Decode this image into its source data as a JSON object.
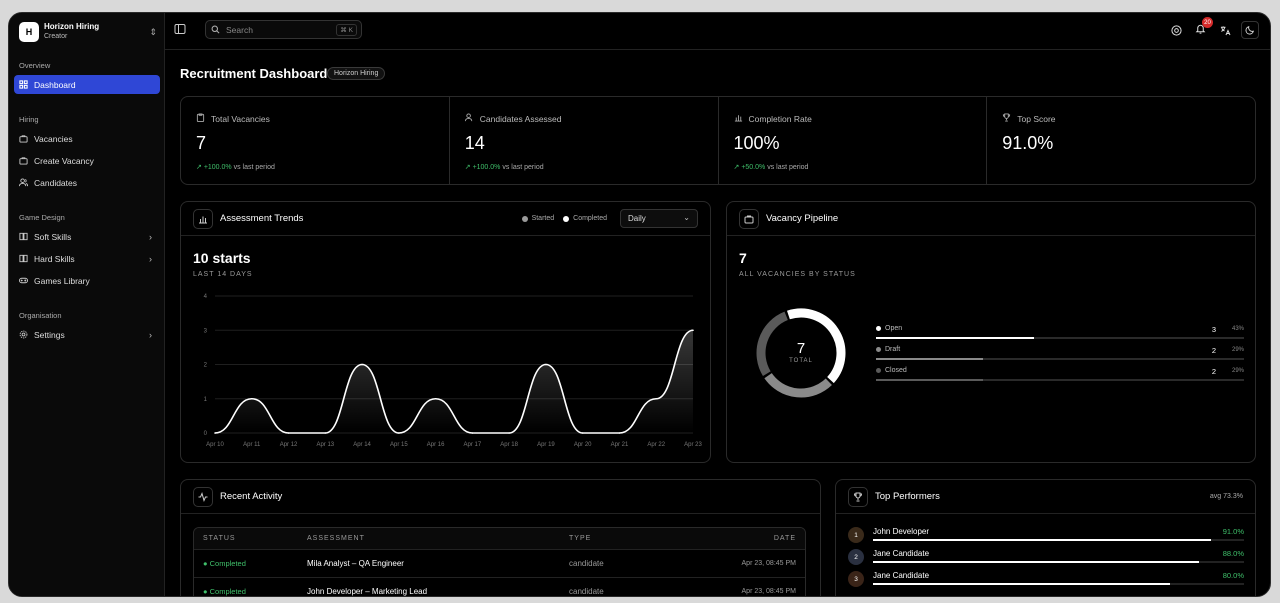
{
  "sidebar": {
    "org_logo": "H",
    "org_name": "Horizon Hiring",
    "org_role": "Creator",
    "sections": [
      {
        "label": "Overview",
        "items": [
          {
            "label": "Dashboard",
            "icon": "grid-icon",
            "active": true
          }
        ]
      },
      {
        "label": "Hiring",
        "items": [
          {
            "label": "Vacancies",
            "icon": "briefcase-icon"
          },
          {
            "label": "Create Vacancy",
            "icon": "briefcase-plus-icon"
          },
          {
            "label": "Candidates",
            "icon": "users-icon"
          }
        ]
      },
      {
        "label": "Game Design",
        "items": [
          {
            "label": "Soft Skills",
            "icon": "book-icon",
            "chevron": true
          },
          {
            "label": "Hard Skills",
            "icon": "book-icon",
            "chevron": true
          },
          {
            "label": "Games Library",
            "icon": "gamepad-icon"
          }
        ]
      },
      {
        "label": "Organisation",
        "items": [
          {
            "label": "Settings",
            "icon": "gear-icon",
            "chevron": true
          }
        ]
      }
    ]
  },
  "topbar": {
    "search_placeholder": "Search",
    "search_shortcut": "⌘ K",
    "notification_count": "20"
  },
  "page": {
    "title": "Recruitment Dashboard",
    "tag": "Horizon Hiring"
  },
  "stats": [
    {
      "label": "Total Vacancies",
      "icon": "clipboard-icon",
      "value": "7",
      "delta": "+100.0%",
      "delta_suffix": "vs last period"
    },
    {
      "label": "Candidates Assessed",
      "icon": "users-icon",
      "value": "14",
      "delta": "+100.0%",
      "delta_suffix": "vs last period"
    },
    {
      "label": "Completion Rate",
      "icon": "chart-icon",
      "value": "100%",
      "delta": "+50.0%",
      "delta_suffix": "vs last period"
    },
    {
      "label": "Top Score",
      "icon": "trophy-icon",
      "value": "91.0%",
      "delta": "",
      "delta_suffix": ""
    }
  ],
  "trends": {
    "title": "Assessment Trends",
    "legend_started": "Started",
    "legend_completed": "Completed",
    "period": "Daily",
    "headline": "10 starts",
    "subhead": "LAST 14 DAYS"
  },
  "chart_data": {
    "type": "area",
    "title": "",
    "xlabel": "",
    "ylabel": "",
    "x": [
      "Apr 10",
      "Apr 11",
      "Apr 12",
      "Apr 13",
      "Apr 14",
      "Apr 15",
      "Apr 16",
      "Apr 17",
      "Apr 18",
      "Apr 19",
      "Apr 20",
      "Apr 21",
      "Apr 22",
      "Apr 23"
    ],
    "yticks": [
      0,
      1,
      2,
      3,
      4
    ],
    "ylim": [
      0,
      4
    ],
    "series": [
      {
        "name": "Started",
        "values": [
          0,
          1,
          0,
          0,
          2,
          0,
          1,
          0,
          0,
          2,
          0,
          0,
          1,
          3
        ]
      }
    ],
    "grid": true
  },
  "pipeline": {
    "title": "Vacancy Pipeline",
    "total": "7",
    "caption": "ALL VACANCIES BY STATUS",
    "donut_label": "TOTAL",
    "rows": [
      {
        "name": "Open",
        "count": "3",
        "pct": "43%",
        "fraction": 0.43,
        "color": "#ffffff"
      },
      {
        "name": "Draft",
        "count": "2",
        "pct": "29%",
        "fraction": 0.29,
        "color": "#8a8a8a"
      },
      {
        "name": "Closed",
        "count": "2",
        "pct": "29%",
        "fraction": 0.29,
        "color": "#5a5a5a"
      }
    ]
  },
  "activity": {
    "title": "Recent Activity",
    "columns": [
      "STATUS",
      "ASSESSMENT",
      "TYPE",
      "DATE"
    ],
    "rows": [
      {
        "status": "Completed",
        "assessment": "Mila Analyst – QA Engineer",
        "type": "candidate",
        "date": "Apr 23, 08:45 PM"
      },
      {
        "status": "Completed",
        "assessment": "John Developer – Marketing Lead",
        "type": "candidate",
        "date": "Apr 23, 08:45 PM"
      }
    ]
  },
  "performers": {
    "title": "Top Performers",
    "avg": "avg 73.3%",
    "rows": [
      {
        "rank": "1",
        "name": "John Developer",
        "score": "91.0%",
        "value": 0.91,
        "rank_color": "#3a2a1a"
      },
      {
        "rank": "2",
        "name": "Jane Candidate",
        "score": "88.0%",
        "value": 0.88,
        "rank_color": "#2a3040"
      },
      {
        "rank": "3",
        "name": "Jane Candidate",
        "score": "80.0%",
        "value": 0.8,
        "rank_color": "#3a2418"
      }
    ]
  }
}
